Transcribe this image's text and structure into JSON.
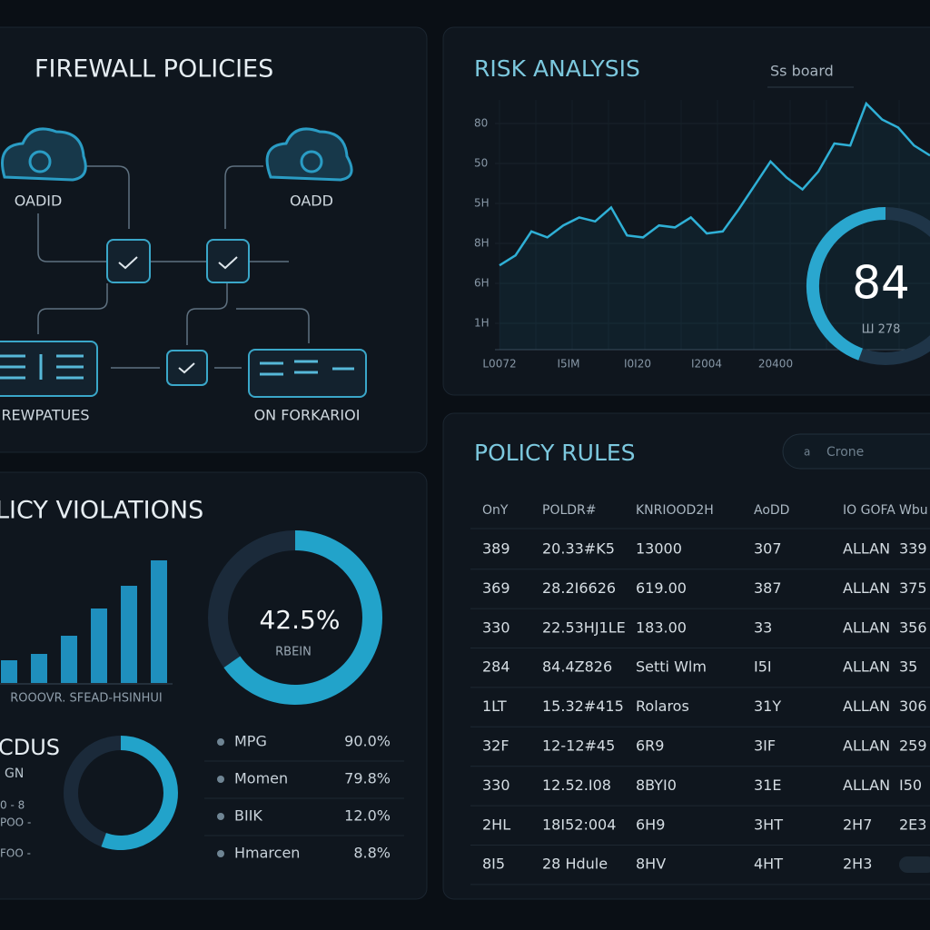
{
  "firewall": {
    "title": "FIREWALL POLICIES",
    "nodes": [
      {
        "label": "OADID"
      },
      {
        "label": "OADD"
      },
      {
        "label": "REWPATUES"
      },
      {
        "label": "ON FORKARIOI"
      }
    ]
  },
  "risk": {
    "title": "RISK ANALYSIS",
    "search": "Ss board",
    "chart_data": {
      "type": "line",
      "y_labels": [
        "80",
        "50",
        "5H",
        "8H",
        "6H",
        "1H"
      ],
      "x_labels": [
        "L0072",
        "I5IM",
        "I0I20",
        "I2004",
        "20400"
      ],
      "ylim": [
        0,
        120
      ],
      "color": "#2fb0d6",
      "values": [
        29,
        34,
        46,
        43,
        49,
        53,
        51,
        58,
        44,
        43,
        49,
        48,
        53,
        45,
        46,
        57,
        69,
        81,
        73,
        67,
        76,
        90,
        89,
        110,
        102,
        98,
        89,
        84
      ]
    },
    "gauge": {
      "value": "84",
      "caption": "Ш 278"
    }
  },
  "violations": {
    "title": "LICY VIOLATIONS",
    "chart_data": {
      "type": "bar",
      "x_label": "ROOOVR. SFEAD-HSINHUI",
      "ylim": [
        0,
        140
      ],
      "color": "#1f8fbd",
      "values": [
        25,
        32,
        52,
        82,
        107,
        135
      ]
    },
    "donut": {
      "value": "42.5%",
      "caption": "RBEIN"
    },
    "status": {
      "title": "CDUS",
      "subtitle": "GN",
      "labels": [
        "0 - 8",
        "POO -",
        "FOO -"
      ]
    },
    "legend": [
      {
        "name": "MPG",
        "value": "90.0%"
      },
      {
        "name": "Momen",
        "value": "79.8%"
      },
      {
        "name": "BIIK",
        "value": "12.0%"
      },
      {
        "name": "Hmarcen",
        "value": "8.8%"
      }
    ]
  },
  "policy": {
    "title": "POLICY RULES",
    "search": "Crone",
    "table": {
      "header": [
        "OnY",
        "POLDR#",
        "KNRIOOD2H",
        "AoDD",
        "IO GOFA",
        "Wbu"
      ],
      "rows": [
        [
          "389",
          "20.33#K5",
          "13000",
          "307",
          "ALLAN",
          "339"
        ],
        [
          "369",
          "28.2I6626",
          "619.00",
          "387",
          "ALLAN",
          "375"
        ],
        [
          "330",
          "22.53HJ1LE",
          "183.00",
          "33",
          "ALLAN",
          "356"
        ],
        [
          "284",
          "84.4Z826",
          "Setti Wlm",
          "I5I",
          "ALLAN",
          "35"
        ],
        [
          "1LT",
          "15.32#415",
          "Rolaros",
          "31Y",
          "ALLAN",
          "306"
        ],
        [
          "32F",
          "12-12#45",
          "6R9",
          "3IF",
          "ALLAN",
          "259"
        ],
        [
          "330",
          "12.52.I08",
          "8BYI0",
          "31E",
          "ALLAN",
          "I50"
        ],
        [
          "2HL",
          "18I52:004",
          "6H9",
          "3HT",
          "2H7",
          "2E3"
        ],
        [
          "8I5",
          "28 Hdule",
          "8HV",
          "4HT",
          "2H3"
        ]
      ]
    }
  }
}
